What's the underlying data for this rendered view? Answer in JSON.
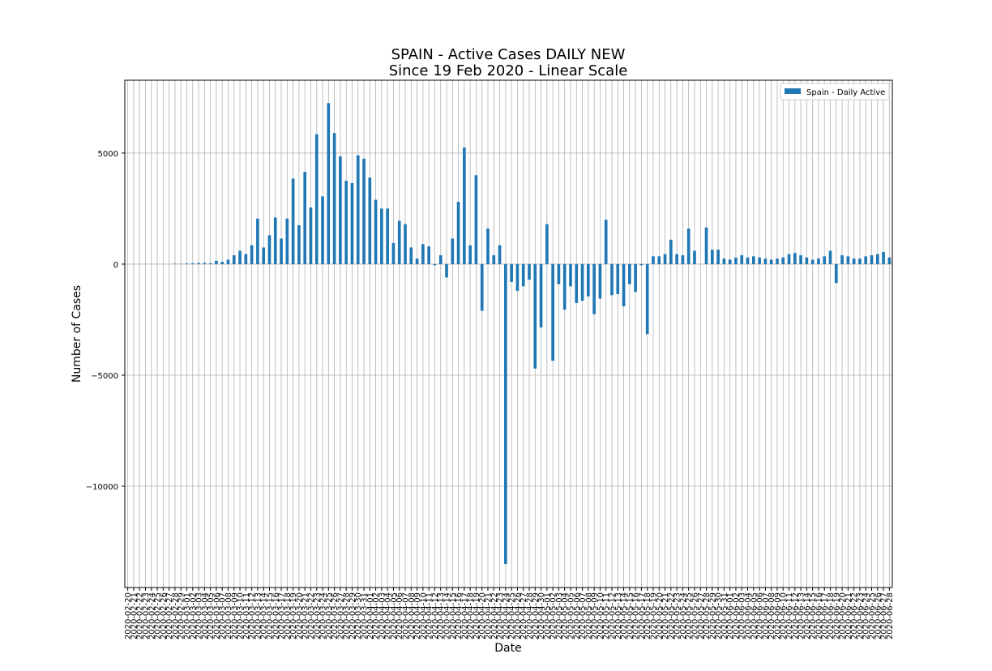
{
  "chart_data": {
    "type": "bar",
    "title": "SPAIN - Active Cases DAILY NEW",
    "subtitle": "Since 19 Feb 2020 - Linear Scale",
    "x_label": "Date",
    "y_label": "Number of Cases",
    "legend_position": "upper right",
    "grid": true,
    "ylim": [
      -14560,
      8280
    ],
    "yticks": [
      {
        "value": -10000,
        "label": "−10000"
      },
      {
        "value": -5000,
        "label": "−5000"
      },
      0,
      5000
    ],
    "categories": [
      "2020-02-20",
      "2020-02-21",
      "2020-02-22",
      "2020-02-23",
      "2020-02-24",
      "2020-02-25",
      "2020-02-26",
      "2020-02-27",
      "2020-02-28",
      "2020-02-29",
      "2020-03-01",
      "2020-03-02",
      "2020-03-03",
      "2020-03-04",
      "2020-03-05",
      "2020-03-06",
      "2020-03-07",
      "2020-03-08",
      "2020-03-09",
      "2020-03-10",
      "2020-03-11",
      "2020-03-12",
      "2020-03-13",
      "2020-03-14",
      "2020-03-15",
      "2020-03-16",
      "2020-03-17",
      "2020-03-18",
      "2020-03-19",
      "2020-03-20",
      "2020-03-21",
      "2020-03-22",
      "2020-03-23",
      "2020-03-24",
      "2020-03-25",
      "2020-03-26",
      "2020-03-27",
      "2020-03-28",
      "2020-03-29",
      "2020-03-30",
      "2020-03-31",
      "2020-04-01",
      "2020-04-02",
      "2020-04-03",
      "2020-04-04",
      "2020-04-05",
      "2020-04-06",
      "2020-04-07",
      "2020-04-08",
      "2020-04-09",
      "2020-04-10",
      "2020-04-11",
      "2020-04-12",
      "2020-04-13",
      "2020-04-14",
      "2020-04-15",
      "2020-04-16",
      "2020-04-17",
      "2020-04-18",
      "2020-04-19",
      "2020-04-20",
      "2020-04-21",
      "2020-04-22",
      "2020-04-23",
      "2020-04-24",
      "2020-04-25",
      "2020-04-26",
      "2020-04-27",
      "2020-04-28",
      "2020-04-29",
      "2020-04-30",
      "2020-05-01",
      "2020-05-02",
      "2020-05-03",
      "2020-05-04",
      "2020-05-05",
      "2020-05-06",
      "2020-05-07",
      "2020-05-08",
      "2020-05-09",
      "2020-05-10",
      "2020-05-11",
      "2020-05-12",
      "2020-05-13",
      "2020-05-14",
      "2020-05-15",
      "2020-05-16",
      "2020-05-17",
      "2020-05-18",
      "2020-05-19",
      "2020-05-20",
      "2020-05-21",
      "2020-05-22",
      "2020-05-23",
      "2020-05-24",
      "2020-05-25",
      "2020-05-26",
      "2020-05-27",
      "2020-05-28",
      "2020-05-29",
      "2020-05-30",
      "2020-05-31",
      "2020-06-01",
      "2020-06-02",
      "2020-06-03",
      "2020-06-04",
      "2020-06-05",
      "2020-06-06",
      "2020-06-07",
      "2020-06-08",
      "2020-06-09",
      "2020-06-10",
      "2020-06-11",
      "2020-06-12",
      "2020-06-13",
      "2020-06-14",
      "2020-06-15",
      "2020-06-16",
      "2020-06-17",
      "2020-06-18",
      "2020-06-19",
      "2020-06-20",
      "2020-06-21",
      "2020-06-22",
      "2020-06-23",
      "2020-06-24",
      "2020-06-25",
      "2020-06-26",
      "2020-06-27",
      "2020-06-28"
    ],
    "series": [
      {
        "name": "Spain - Daily Active",
        "color": "#1f77b4",
        "values": [
          0,
          0,
          0,
          0,
          0,
          0,
          0,
          0,
          20,
          15,
          30,
          40,
          50,
          50,
          40,
          150,
          100,
          200,
          400,
          600,
          450,
          850,
          2050,
          750,
          1300,
          2100,
          1150,
          2050,
          3850,
          1750,
          4150,
          2550,
          5850,
          3050,
          7250,
          5900,
          4850,
          3750,
          3650,
          4900,
          4750,
          3900,
          2900,
          2500,
          2500,
          950,
          1950,
          1800,
          750,
          250,
          900,
          800,
          -50,
          400,
          -600,
          1150,
          2800,
          5250,
          850,
          4000,
          -2100,
          1600,
          400,
          850,
          -13500,
          -800,
          -1200,
          -1000,
          -700,
          -4700,
          -2850,
          1800,
          -4350,
          -900,
          -2050,
          -1000,
          -1750,
          -1650,
          -1450,
          -2250,
          -1550,
          2000,
          -1400,
          -1350,
          -1900,
          -900,
          -1250,
          -50,
          -3150,
          350,
          350,
          450,
          1100,
          450,
          400,
          1600,
          600,
          0,
          1650,
          650,
          650,
          250,
          200,
          300,
          400,
          300,
          350,
          300,
          250,
          200,
          250,
          300,
          450,
          500,
          400,
          300,
          200,
          250,
          350,
          600,
          -850,
          400,
          350,
          250,
          250,
          350,
          400,
          450,
          550,
          300
        ]
      }
    ]
  }
}
